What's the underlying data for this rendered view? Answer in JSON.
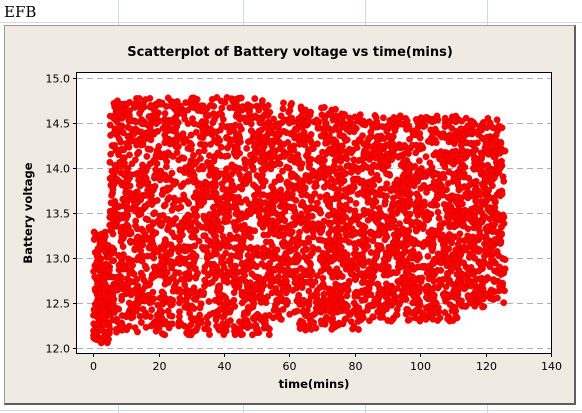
{
  "sheet": {
    "cell_tag": "EFB"
  },
  "chart_data": {
    "type": "scatter",
    "title": "Scatterplot of Battery voltage vs time(mins)",
    "xlabel": "time(mins)",
    "ylabel": "Battery voltage",
    "xlim": [
      -5,
      140
    ],
    "ylim": [
      11.95,
      15.05
    ],
    "xticks": [
      0,
      20,
      40,
      60,
      80,
      100,
      120,
      140
    ],
    "yticks": [
      12.0,
      12.5,
      13.0,
      13.5,
      14.0,
      14.5,
      15.0
    ],
    "grid": "horizontal dashed at y ticks",
    "marker_color": "#ff0000",
    "series": [
      {
        "segments": [
          {
            "x": [
              0,
              5
            ],
            "y_min": 12.06,
            "y_max": 13.3
          },
          {
            "x": [
              5,
              54
            ],
            "y_min": 12.15,
            "y_max": 14.78
          },
          {
            "x": [
              54,
              58
            ],
            "y_min": 12.3,
            "y_max": 14.6
          },
          {
            "x": [
              58,
              63
            ],
            "y_min": 12.35,
            "y_max": 14.72
          },
          {
            "x": [
              63,
              75
            ],
            "y_min": 12.2,
            "y_max": 14.68
          },
          {
            "x": [
              75,
              82
            ],
            "y_min": 12.2,
            "y_max": 14.62
          },
          {
            "x": [
              82,
              96
            ],
            "y_min": 12.3,
            "y_max": 14.58
          },
          {
            "x": [
              96,
              112
            ],
            "y_min": 12.3,
            "y_max": 14.58
          },
          {
            "x": [
              112,
              120
            ],
            "y_min": 12.45,
            "y_max": 14.55
          },
          {
            "x": [
              120,
              126
            ],
            "y_min": 12.5,
            "y_max": 14.55
          }
        ]
      }
    ]
  },
  "colors": {
    "frame": "#efebe2",
    "plot_bg": "#ffffff",
    "marker": "#ff0000",
    "grid": "#b0b0b0"
  }
}
